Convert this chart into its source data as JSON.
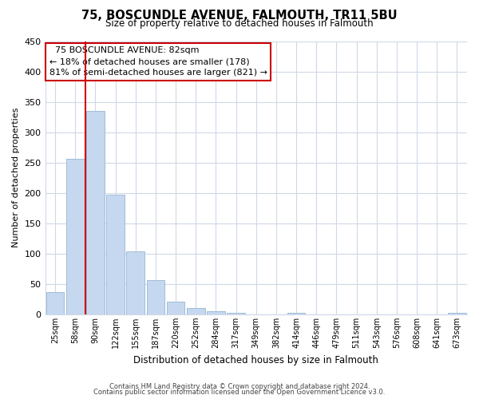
{
  "title_line1": "75, BOSCUNDLE AVENUE, FALMOUTH, TR11 5BU",
  "title_line2": "Size of property relative to detached houses in Falmouth",
  "xlabel": "Distribution of detached houses by size in Falmouth",
  "ylabel": "Number of detached properties",
  "bar_labels": [
    "25sqm",
    "58sqm",
    "90sqm",
    "122sqm",
    "155sqm",
    "187sqm",
    "220sqm",
    "252sqm",
    "284sqm",
    "317sqm",
    "349sqm",
    "382sqm",
    "414sqm",
    "446sqm",
    "479sqm",
    "511sqm",
    "543sqm",
    "576sqm",
    "608sqm",
    "641sqm",
    "673sqm"
  ],
  "bar_values": [
    36,
    256,
    335,
    197,
    104,
    57,
    21,
    11,
    5,
    2,
    0,
    0,
    2,
    0,
    0,
    0,
    0,
    0,
    0,
    0,
    3
  ],
  "bar_color": "#c5d8f0",
  "bar_edge_color": "#a0bcd8",
  "vline_color": "#cc0000",
  "ylim": [
    0,
    450
  ],
  "yticks": [
    0,
    50,
    100,
    150,
    200,
    250,
    300,
    350,
    400,
    450
  ],
  "annotation_title": "75 BOSCUNDLE AVENUE: 82sqm",
  "annotation_line1": "← 18% of detached houses are smaller (178)",
  "annotation_line2": "81% of semi-detached houses are larger (821) →",
  "footer_line1": "Contains HM Land Registry data © Crown copyright and database right 2024.",
  "footer_line2": "Contains public sector information licensed under the Open Government Licence v3.0.",
  "background_color": "#ffffff",
  "grid_color": "#d0d8e8"
}
